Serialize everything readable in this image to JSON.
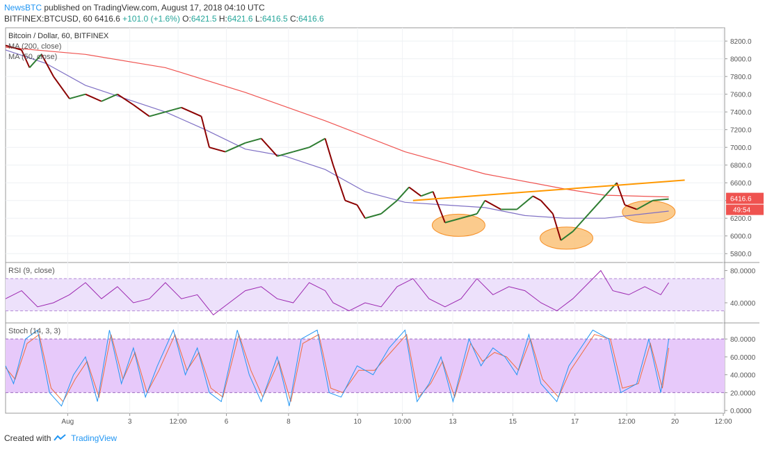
{
  "header": {
    "author": "NewsBTC",
    "published_text": "published on TradingView.com, August 17, 2018 04:10 UTC",
    "symbol": "BITFINEX:BTCUSD, 60",
    "last": "6416.6",
    "change": "+101.0 (+1.6%)",
    "o_label": "O:",
    "o": "6421.5",
    "h_label": "H:",
    "h": "6421.6",
    "l_label": "L:",
    "l": "6416.5",
    "c_label": "C:",
    "c": "6416.6"
  },
  "footer": {
    "created_with": "Created with",
    "brand": "TradingView"
  },
  "colors": {
    "up": "#26a69a",
    "down": "#ef5350",
    "candle_up": "#2e7d32",
    "candle_down": "#8b0000",
    "ma200": "#ef5350",
    "ma50": "#7e6fc4",
    "trendline": "#ff9800",
    "rsi_line": "#9c27b0",
    "rsi_band": "#ede1fb",
    "stoch_k": "#2196f3",
    "stoch_d": "#ef6c3e",
    "stoch_band": "#e7c9fa"
  },
  "chart_data": [
    {
      "type": "line",
      "title": "Bitcoin / Dollar, 60, BITFINEX",
      "indicator_labels": [
        "MA (200, close)",
        "MA (50, close)"
      ],
      "x_ticks": [
        "Aug",
        "3",
        "12:00",
        "6",
        "8",
        "10",
        "10:00",
        "13",
        "15",
        "17",
        "12:00",
        "20",
        "12:00"
      ],
      "y_ticks": [
        8200,
        8000,
        7800,
        7600,
        7400,
        7200,
        7000,
        6800,
        6600,
        6400,
        6200,
        6000,
        5800
      ],
      "y_tick_labels": [
        "8200.0",
        "8000.0",
        "7800.0",
        "7600.0",
        "7400.0",
        "7200.0",
        "7000.0",
        "6800.0",
        "6600.0",
        "6400.0",
        "6200.0",
        "6000.0",
        "5800.0"
      ],
      "ylim": [
        5700,
        8350
      ],
      "price_close": [
        [
          0,
          8150
        ],
        [
          20,
          8100
        ],
        [
          30,
          7900
        ],
        [
          45,
          8050
        ],
        [
          60,
          7800
        ],
        [
          80,
          7550
        ],
        [
          100,
          7600
        ],
        [
          120,
          7520
        ],
        [
          140,
          7600
        ],
        [
          160,
          7480
        ],
        [
          180,
          7350
        ],
        [
          200,
          7400
        ],
        [
          220,
          7450
        ],
        [
          245,
          7350
        ],
        [
          255,
          7000
        ],
        [
          275,
          6950
        ],
        [
          300,
          7050
        ],
        [
          320,
          7100
        ],
        [
          340,
          6900
        ],
        [
          360,
          6950
        ],
        [
          380,
          7000
        ],
        [
          400,
          7100
        ],
        [
          410,
          6800
        ],
        [
          425,
          6400
        ],
        [
          440,
          6350
        ],
        [
          450,
          6200
        ],
        [
          470,
          6250
        ],
        [
          490,
          6400
        ],
        [
          505,
          6550
        ],
        [
          520,
          6450
        ],
        [
          535,
          6500
        ],
        [
          550,
          6150
        ],
        [
          570,
          6200
        ],
        [
          590,
          6250
        ],
        [
          600,
          6400
        ],
        [
          620,
          6300
        ],
        [
          640,
          6300
        ],
        [
          660,
          6450
        ],
        [
          670,
          6400
        ],
        [
          685,
          6250
        ],
        [
          695,
          5950
        ],
        [
          710,
          6050
        ],
        [
          730,
          6250
        ],
        [
          750,
          6450
        ],
        [
          765,
          6600
        ],
        [
          775,
          6350
        ],
        [
          790,
          6300
        ],
        [
          810,
          6400
        ],
        [
          830,
          6416.6
        ]
      ],
      "ma200": [
        [
          0,
          8130
        ],
        [
          100,
          8050
        ],
        [
          200,
          7900
        ],
        [
          300,
          7620
        ],
        [
          400,
          7300
        ],
        [
          500,
          6950
        ],
        [
          600,
          6700
        ],
        [
          700,
          6530
        ],
        [
          750,
          6460
        ],
        [
          830,
          6440
        ]
      ],
      "ma50": [
        [
          0,
          8100
        ],
        [
          50,
          7950
        ],
        [
          100,
          7700
        ],
        [
          200,
          7400
        ],
        [
          250,
          7200
        ],
        [
          300,
          6980
        ],
        [
          350,
          6900
        ],
        [
          400,
          6750
        ],
        [
          450,
          6500
        ],
        [
          500,
          6380
        ],
        [
          550,
          6350
        ],
        [
          600,
          6320
        ],
        [
          650,
          6230
        ],
        [
          700,
          6200
        ],
        [
          750,
          6200
        ],
        [
          790,
          6240
        ],
        [
          830,
          6280
        ]
      ],
      "trendline": [
        [
          510,
          6400
        ],
        [
          850,
          6630
        ]
      ],
      "highlight_ellipses": [
        {
          "x": 567,
          "y": 6120
        },
        {
          "x": 702,
          "y": 5975
        },
        {
          "x": 805,
          "y": 6270
        }
      ],
      "last_price": "6416.6",
      "countdown": "49:54"
    },
    {
      "type": "line",
      "title": "RSI (9, close)",
      "y_ticks": [
        80,
        40
      ],
      "y_tick_labels": [
        "80.0000",
        "40.0000"
      ],
      "bands": [
        30,
        70
      ],
      "ylim": [
        15,
        90
      ],
      "values": [
        [
          0,
          45
        ],
        [
          20,
          55
        ],
        [
          40,
          35
        ],
        [
          60,
          40
        ],
        [
          80,
          50
        ],
        [
          100,
          65
        ],
        [
          120,
          45
        ],
        [
          140,
          60
        ],
        [
          160,
          40
        ],
        [
          180,
          45
        ],
        [
          200,
          65
        ],
        [
          220,
          45
        ],
        [
          240,
          50
        ],
        [
          260,
          25
        ],
        [
          280,
          40
        ],
        [
          300,
          55
        ],
        [
          320,
          60
        ],
        [
          340,
          45
        ],
        [
          360,
          40
        ],
        [
          380,
          65
        ],
        [
          400,
          55
        ],
        [
          410,
          40
        ],
        [
          430,
          30
        ],
        [
          450,
          40
        ],
        [
          470,
          35
        ],
        [
          490,
          60
        ],
        [
          510,
          70
        ],
        [
          530,
          45
        ],
        [
          550,
          35
        ],
        [
          570,
          45
        ],
        [
          590,
          70
        ],
        [
          610,
          50
        ],
        [
          630,
          60
        ],
        [
          650,
          55
        ],
        [
          670,
          40
        ],
        [
          690,
          30
        ],
        [
          710,
          45
        ],
        [
          730,
          65
        ],
        [
          745,
          80
        ],
        [
          760,
          55
        ],
        [
          780,
          50
        ],
        [
          800,
          60
        ],
        [
          820,
          50
        ],
        [
          830,
          65
        ]
      ]
    },
    {
      "type": "line",
      "title": "Stoch (14, 3, 3)",
      "y_ticks": [
        80,
        60,
        40,
        20,
        0
      ],
      "y_tick_labels": [
        "80.0000",
        "60.0000",
        "40.0000",
        "20.0000",
        "0.0000"
      ],
      "bands": [
        20,
        80
      ],
      "ylim": [
        -3,
        98
      ],
      "series": [
        {
          "values": [
            [
              0,
              50
            ],
            [
              10,
              30
            ],
            [
              25,
              80
            ],
            [
              40,
              90
            ],
            [
              55,
              20
            ],
            [
              70,
              5
            ],
            [
              85,
              40
            ],
            [
              100,
              60
            ],
            [
              115,
              10
            ],
            [
              130,
              90
            ],
            [
              145,
              30
            ],
            [
              160,
              70
            ],
            [
              175,
              15
            ],
            [
              190,
              50
            ],
            [
              210,
              90
            ],
            [
              225,
              40
            ],
            [
              240,
              70
            ],
            [
              255,
              20
            ],
            [
              270,
              10
            ],
            [
              290,
              90
            ],
            [
              305,
              40
            ],
            [
              320,
              10
            ],
            [
              340,
              60
            ],
            [
              355,
              5
            ],
            [
              370,
              80
            ],
            [
              390,
              90
            ],
            [
              405,
              20
            ],
            [
              420,
              15
            ],
            [
              440,
              50
            ],
            [
              460,
              40
            ],
            [
              480,
              70
            ],
            [
              500,
              90
            ],
            [
              515,
              10
            ],
            [
              530,
              30
            ],
            [
              545,
              60
            ],
            [
              560,
              10
            ],
            [
              580,
              80
            ],
            [
              595,
              50
            ],
            [
              610,
              70
            ],
            [
              625,
              60
            ],
            [
              640,
              40
            ],
            [
              655,
              85
            ],
            [
              670,
              30
            ],
            [
              690,
              10
            ],
            [
              705,
              50
            ],
            [
              720,
              70
            ],
            [
              735,
              90
            ],
            [
              755,
              80
            ],
            [
              770,
              20
            ],
            [
              790,
              30
            ],
            [
              805,
              80
            ],
            [
              820,
              20
            ],
            [
              830,
              80
            ]
          ]
        },
        {
          "values": [
            [
              0,
              48
            ],
            [
              12,
              35
            ],
            [
              27,
              75
            ],
            [
              42,
              85
            ],
            [
              57,
              25
            ],
            [
              72,
              10
            ],
            [
              87,
              35
            ],
            [
              102,
              55
            ],
            [
              117,
              15
            ],
            [
              132,
              85
            ],
            [
              147,
              35
            ],
            [
              162,
              65
            ],
            [
              177,
              20
            ],
            [
              192,
              45
            ],
            [
              212,
              85
            ],
            [
              227,
              45
            ],
            [
              242,
              65
            ],
            [
              257,
              25
            ],
            [
              272,
              15
            ],
            [
              292,
              85
            ],
            [
              307,
              45
            ],
            [
              322,
              15
            ],
            [
              342,
              55
            ],
            [
              357,
              10
            ],
            [
              372,
              75
            ],
            [
              392,
              85
            ],
            [
              407,
              25
            ],
            [
              422,
              20
            ],
            [
              442,
              45
            ],
            [
              462,
              45
            ],
            [
              482,
              65
            ],
            [
              502,
              85
            ],
            [
              517,
              15
            ],
            [
              532,
              30
            ],
            [
              547,
              55
            ],
            [
              562,
              15
            ],
            [
              582,
              75
            ],
            [
              597,
              55
            ],
            [
              612,
              65
            ],
            [
              627,
              60
            ],
            [
              642,
              45
            ],
            [
              657,
              80
            ],
            [
              672,
              35
            ],
            [
              692,
              15
            ],
            [
              707,
              45
            ],
            [
              722,
              65
            ],
            [
              737,
              85
            ],
            [
              757,
              80
            ],
            [
              772,
              25
            ],
            [
              792,
              30
            ],
            [
              807,
              75
            ],
            [
              822,
              25
            ],
            [
              830,
              70
            ]
          ]
        }
      ]
    }
  ]
}
